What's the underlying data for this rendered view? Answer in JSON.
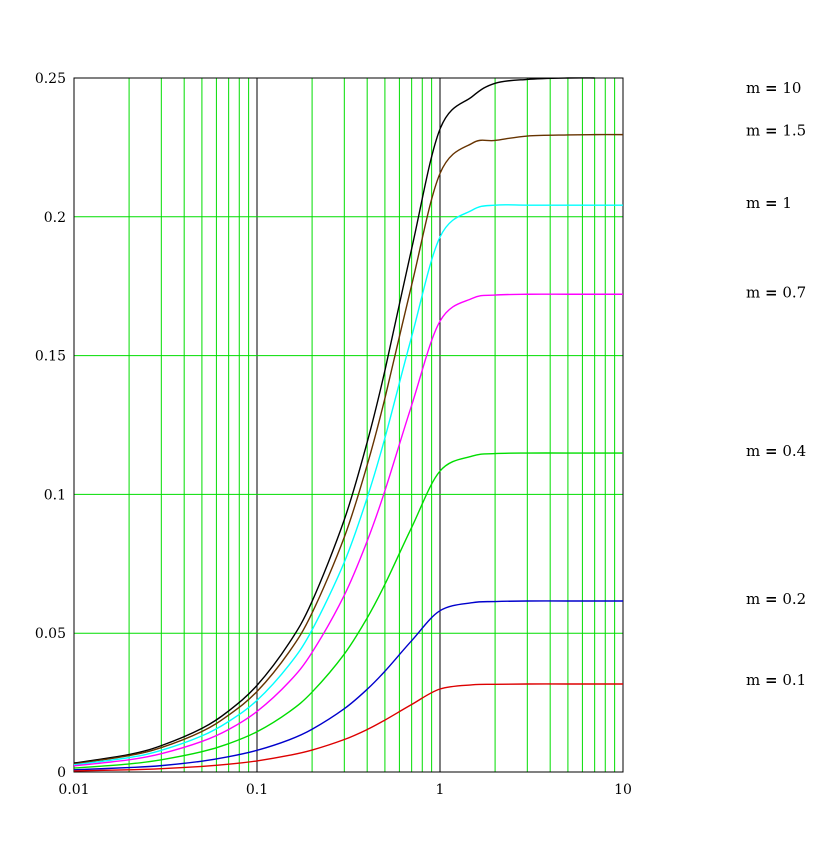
{
  "chart_data": {
    "type": "line",
    "title": "",
    "xlabel": "",
    "ylabel": "",
    "x_scale": "log",
    "xlim": [
      0.01,
      10
    ],
    "ylim": [
      0,
      0.25
    ],
    "grid": true,
    "grid_color": "#00dd00",
    "major_grid_color": "#000000",
    "x_ticks": [
      {
        "value": 0.01,
        "label": "0.01"
      },
      {
        "value": 0.1,
        "label": "0.1"
      },
      {
        "value": 1,
        "label": "1"
      },
      {
        "value": 10,
        "label": "10"
      }
    ],
    "y_ticks": [
      {
        "value": 0,
        "label": "0"
      },
      {
        "value": 0.05,
        "label": "0.05"
      },
      {
        "value": 0.1,
        "label": "0.1"
      },
      {
        "value": 0.15,
        "label": "0.15"
      },
      {
        "value": 0.2,
        "label": "0.2"
      },
      {
        "value": 0.25,
        "label": "0.25"
      }
    ],
    "x": [
      0.01,
      0.02,
      0.03,
      0.05,
      0.07,
      0.1,
      0.15,
      0.2,
      0.3,
      0.4,
      0.5,
      0.7,
      1,
      1.5,
      2,
      3,
      5,
      7,
      10
    ],
    "series": [
      {
        "name": "m = 10",
        "m_text": "10",
        "color": "#000000",
        "values": [
          0.0032,
          0.0063,
          0.0095,
          0.0157,
          0.022,
          0.0312,
          0.0465,
          0.0615,
          0.0909,
          0.1188,
          0.1446,
          0.1885,
          0.2316,
          0.2433,
          0.2481,
          0.2495,
          0.25,
          0.25,
          null
        ]
      },
      {
        "name": "m = 1.5",
        "m_text": "1.5",
        "color": "#663300",
        "values": [
          0.0029,
          0.0059,
          0.0088,
          0.0146,
          0.0205,
          0.029,
          0.0433,
          0.0573,
          0.0846,
          0.1106,
          0.1346,
          0.1754,
          0.2156,
          0.2265,
          0.2275,
          0.2291,
          0.2295,
          0.2296,
          0.2296
        ]
      },
      {
        "name": "m = 1",
        "m_text": "1",
        "color": "#00ffff",
        "values": [
          0.0026,
          0.0052,
          0.0078,
          0.013,
          0.0182,
          0.0258,
          0.0386,
          0.0512,
          0.0756,
          0.0988,
          0.1203,
          0.1568,
          0.1927,
          0.2024,
          0.2042,
          0.2042,
          0.2042,
          0.2042,
          0.2042
        ]
      },
      {
        "name": "m = 0.7",
        "m_text": "0.7",
        "color": "#ff00ff",
        "values": [
          0.0022,
          0.0044,
          0.0066,
          0.011,
          0.0153,
          0.0218,
          0.0325,
          0.0431,
          0.0637,
          0.0832,
          0.1013,
          0.1321,
          0.1624,
          0.1706,
          0.1718,
          0.1721,
          0.1721,
          0.1721,
          0.1721
        ]
      },
      {
        "name": "m = 0.4",
        "m_text": "0.4",
        "color": "#00dd00",
        "values": [
          0.0014,
          0.0029,
          0.0044,
          0.0073,
          0.0102,
          0.0145,
          0.0217,
          0.0288,
          0.0425,
          0.0555,
          0.0676,
          0.0881,
          0.1084,
          0.1138,
          0.1147,
          0.1149,
          0.1149,
          0.1149,
          0.1149
        ]
      },
      {
        "name": "m = 0.2",
        "m_text": "0.2",
        "color": "#0000cc",
        "values": [
          0.0008,
          0.0016,
          0.0023,
          0.0039,
          0.0055,
          0.0078,
          0.0116,
          0.0154,
          0.0228,
          0.0298,
          0.0363,
          0.0473,
          0.0581,
          0.061,
          0.0614,
          0.0616,
          0.0616,
          0.0616,
          0.0616
        ]
      },
      {
        "name": "m = 0.1",
        "m_text": "0.1",
        "color": "#dd0000",
        "values": [
          0.0004,
          0.0008,
          0.0012,
          0.002,
          0.0028,
          0.004,
          0.006,
          0.0079,
          0.0117,
          0.0153,
          0.0187,
          0.0243,
          0.0299,
          0.0314,
          0.0316,
          0.0317,
          0.0317,
          0.0317,
          0.0317
        ]
      }
    ]
  }
}
